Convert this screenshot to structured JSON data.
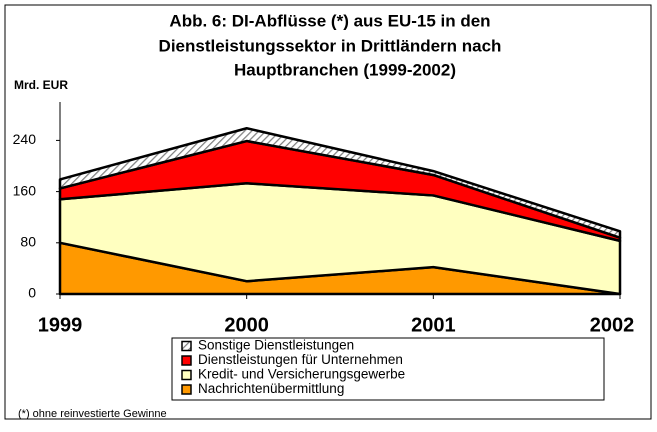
{
  "chart_data": {
    "type": "stacked_area",
    "title": [
      "Abb. 6: DI-Abflüsse (*) aus EU-15 in den",
      "Dienstleistungssektor in Drittländern nach",
      "Hauptbranchen (1999-2002)"
    ],
    "y_label": "Mrd. EUR",
    "footnote": "(*) ohne reinvestierte Gewinne",
    "categories": [
      "1999",
      "2000",
      "2001",
      "2002"
    ],
    "series": [
      {
        "name": "Sonstige Dienstleistungen",
        "color": "#808080",
        "pattern": "hatch",
        "values": [
          14,
          20,
          6,
          10
        ]
      },
      {
        "name": "Dienstleistungen für Unternehmen",
        "color": "#ff0000",
        "values": [
          17,
          66,
          32,
          5
        ]
      },
      {
        "name": "Kredit- und Versicherungsgewerbe",
        "color": "#ffffc0",
        "values": [
          68,
          153,
          112,
          83
        ]
      },
      {
        "name": "Nachrichtenübermittlung",
        "color": "#ff9900",
        "values": [
          80,
          20,
          42,
          0
        ]
      }
    ],
    "ylim": [
      0,
      300
    ],
    "yticks": [
      0,
      80,
      160,
      240
    ]
  }
}
